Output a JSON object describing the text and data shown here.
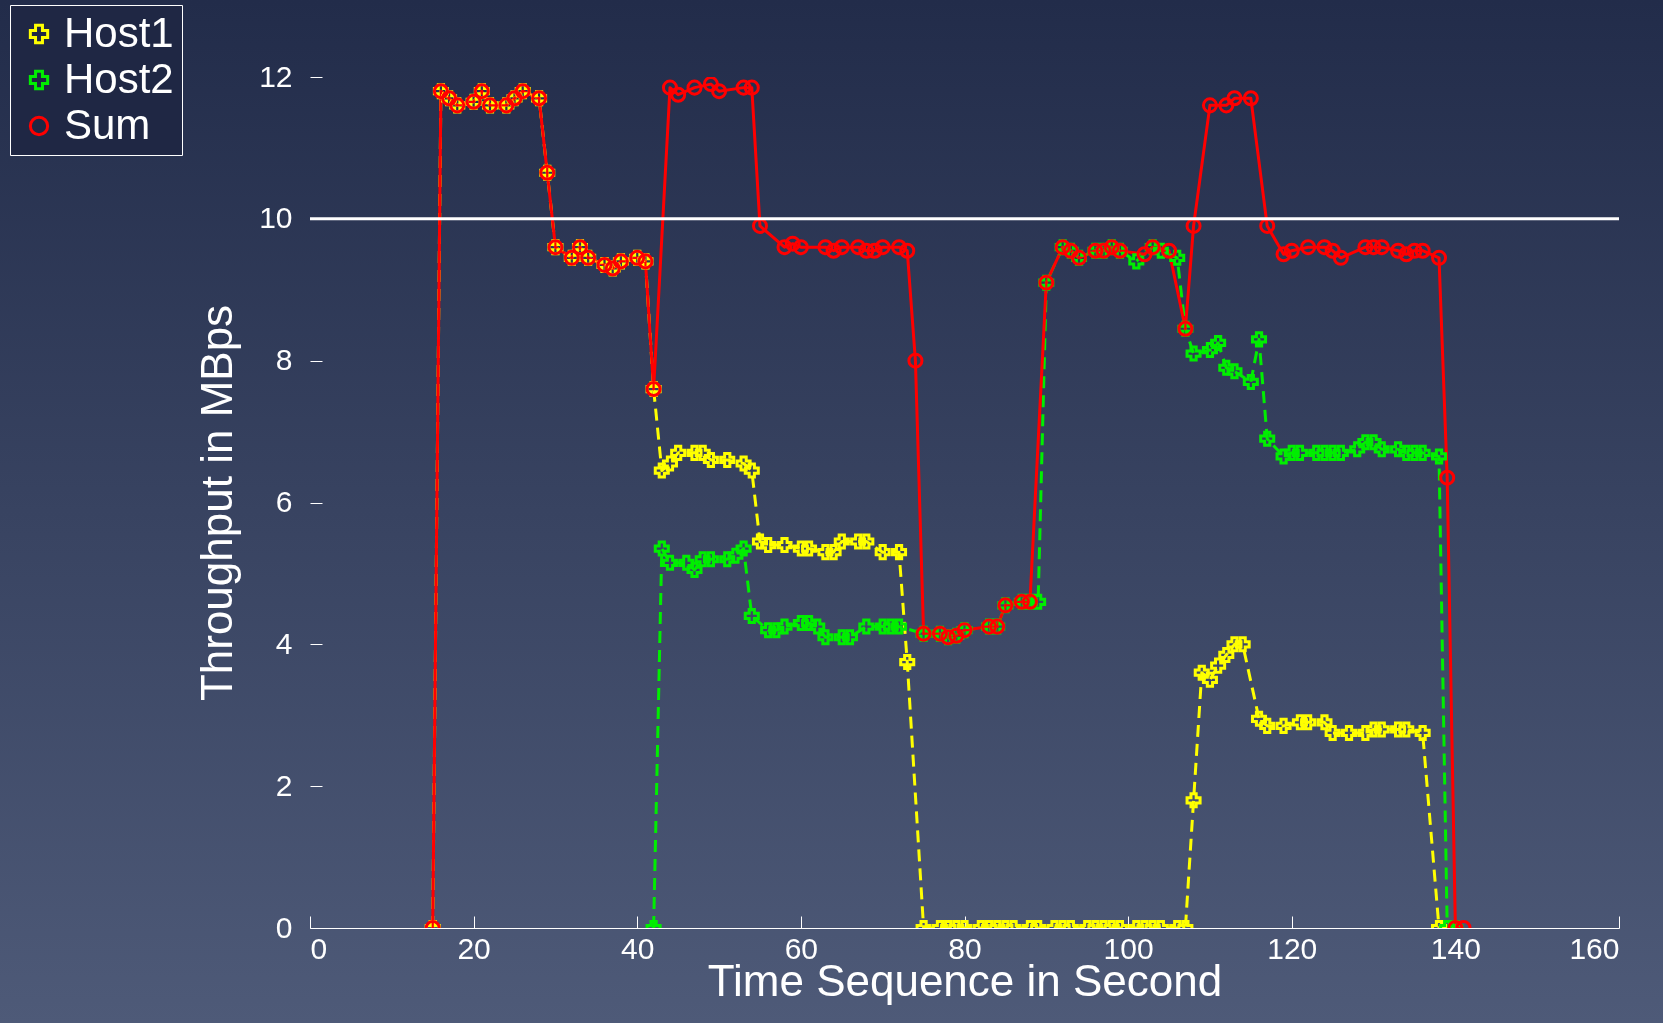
{
  "chart_data": {
    "type": "line",
    "xlabel": "Time Sequence in Second",
    "ylabel": "Throughput in MBps",
    "xlim": [
      0,
      160
    ],
    "xticks": [
      0,
      20,
      40,
      60,
      80,
      100,
      120,
      140,
      160
    ],
    "ylim": [
      0,
      12
    ],
    "yticks": [
      0,
      2,
      4,
      6,
      8,
      10,
      12
    ],
    "grid": false,
    "legend": "top left",
    "ref_lines": [
      {
        "axis": "y",
        "value": 10,
        "color": "#ffffff"
      }
    ],
    "series": [
      {
        "name": "Host1",
        "color": "#ffff00",
        "marker": "cross",
        "line_style": "dashed",
        "x": [
          15,
          16,
          17,
          18,
          20,
          21,
          22,
          24,
          25,
          26,
          28,
          29,
          30,
          32,
          33,
          34,
          36,
          37,
          38,
          40,
          41,
          42,
          43,
          44,
          45,
          47,
          48,
          49,
          51,
          53,
          54,
          55,
          56,
          58,
          60,
          61,
          63,
          64,
          65,
          67,
          68,
          70,
          72,
          73,
          75,
          77,
          78,
          79,
          80,
          82,
          83,
          84,
          85,
          86,
          88,
          89,
          91,
          92,
          93,
          95,
          96,
          97,
          98,
          99,
          101,
          102,
          103,
          104,
          106,
          107,
          108,
          109,
          110,
          111,
          112,
          113,
          114,
          116,
          117,
          119,
          121,
          122,
          124,
          125,
          127,
          129,
          130,
          131,
          133,
          134,
          136,
          138,
          139
        ],
        "values": [
          0,
          11.8,
          11.7,
          11.6,
          11.65,
          11.8,
          11.6,
          11.6,
          11.7,
          11.8,
          11.7,
          10.65,
          9.6,
          9.45,
          9.6,
          9.45,
          9.35,
          9.3,
          9.4,
          9.45,
          9.4,
          7.6,
          6.45,
          6.55,
          6.7,
          6.7,
          6.7,
          6.6,
          6.6,
          6.55,
          6.45,
          5.45,
          5.4,
          5.4,
          5.35,
          5.35,
          5.3,
          5.3,
          5.45,
          5.45,
          5.45,
          5.3,
          5.3,
          3.75,
          0,
          0,
          0,
          0,
          0,
          0,
          0,
          0,
          0,
          0,
          0,
          0,
          0,
          0,
          0,
          0,
          0,
          0,
          0,
          0,
          0,
          0,
          0,
          0,
          0,
          0,
          1.8,
          3.6,
          3.5,
          3.7,
          3.85,
          4.0,
          4.0,
          2.95,
          2.85,
          2.85,
          2.9,
          2.9,
          2.9,
          2.75,
          2.75,
          2.75,
          2.8,
          2.8,
          2.8,
          2.8,
          2.75,
          0,
          0
        ]
      },
      {
        "name": "Host2",
        "color": "#00ee00",
        "marker": "cross",
        "line_style": "dashed",
        "x": [
          42,
          43,
          44,
          46,
          47,
          48,
          49,
          51,
          52,
          53,
          54,
          56,
          57,
          58,
          60,
          61,
          62,
          63,
          65,
          66,
          68,
          70,
          71,
          72,
          75,
          77,
          78,
          79,
          80,
          83,
          84,
          85,
          87,
          88,
          89,
          90,
          92,
          93,
          94,
          96,
          97,
          98,
          99,
          101,
          103,
          104,
          106,
          107,
          108,
          110,
          111,
          112,
          113,
          115,
          116,
          117,
          119,
          120,
          121,
          123,
          124,
          125,
          126,
          128,
          129,
          130,
          131,
          133,
          134,
          135,
          136,
          138,
          139,
          140
        ],
        "values": [
          0,
          5.35,
          5.15,
          5.15,
          5.05,
          5.2,
          5.2,
          5.2,
          5.25,
          5.35,
          4.4,
          4.2,
          4.2,
          4.25,
          4.3,
          4.3,
          4.25,
          4.1,
          4.1,
          4.1,
          4.25,
          4.25,
          4.25,
          4.25,
          4.15,
          4.15,
          4.1,
          4.12,
          4.2,
          4.25,
          4.25,
          4.55,
          4.6,
          4.6,
          4.6,
          9.1,
          9.6,
          9.55,
          9.45,
          9.55,
          9.55,
          9.6,
          9.55,
          9.4,
          9.6,
          9.55,
          9.45,
          8.45,
          8.1,
          8.15,
          8.25,
          7.9,
          7.85,
          7.7,
          8.3,
          6.9,
          6.65,
          6.7,
          6.7,
          6.7,
          6.7,
          6.7,
          6.7,
          6.75,
          6.85,
          6.85,
          6.75,
          6.75,
          6.7,
          6.7,
          6.7,
          6.65,
          0,
          0
        ]
      },
      {
        "name": "Sum",
        "color": "#ff0000",
        "marker": "circle",
        "line_style": "solid",
        "x": [
          15,
          16,
          17,
          18,
          20,
          21,
          22,
          24,
          25,
          26,
          28,
          29,
          30,
          32,
          33,
          34,
          36,
          37,
          38,
          40,
          41,
          42,
          44,
          45,
          47,
          49,
          50,
          53,
          54,
          55,
          58,
          59,
          60,
          63,
          64,
          65,
          67,
          68,
          69,
          70,
          72,
          73,
          74,
          75,
          77,
          78,
          79,
          80,
          83,
          84,
          85,
          87,
          88,
          90,
          92,
          93,
          94,
          96,
          97,
          98,
          99,
          102,
          103,
          105,
          107,
          108,
          110,
          112,
          113,
          115,
          117,
          119,
          120,
          122,
          124,
          125,
          126,
          129,
          130,
          131,
          133,
          134,
          135,
          136,
          138,
          139,
          140,
          141
        ],
        "values": [
          0,
          11.8,
          11.7,
          11.6,
          11.65,
          11.8,
          11.6,
          11.6,
          11.7,
          11.8,
          11.7,
          10.65,
          9.6,
          9.45,
          9.6,
          9.45,
          9.35,
          9.3,
          9.4,
          9.45,
          9.4,
          7.6,
          11.85,
          11.75,
          11.85,
          11.9,
          11.8,
          11.85,
          11.85,
          9.9,
          9.6,
          9.65,
          9.6,
          9.6,
          9.55,
          9.6,
          9.6,
          9.55,
          9.55,
          9.6,
          9.6,
          9.55,
          8.0,
          4.15,
          4.15,
          4.1,
          4.12,
          4.2,
          4.25,
          4.25,
          4.55,
          4.6,
          4.6,
          9.1,
          9.6,
          9.55,
          9.45,
          9.55,
          9.55,
          9.6,
          9.55,
          9.5,
          9.6,
          9.55,
          8.45,
          9.9,
          11.6,
          11.6,
          11.7,
          11.7,
          9.9,
          9.5,
          9.55,
          9.6,
          9.6,
          9.55,
          9.45,
          9.6,
          9.6,
          9.6,
          9.55,
          9.5,
          9.55,
          9.55,
          9.45,
          6.35,
          0,
          0
        ]
      }
    ]
  }
}
